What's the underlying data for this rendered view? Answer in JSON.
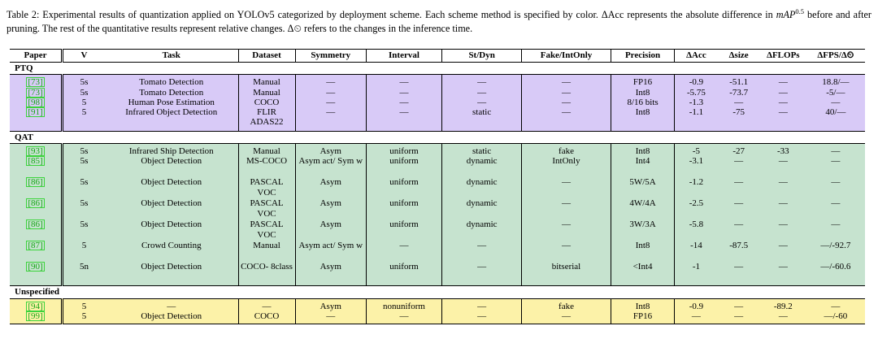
{
  "caption": {
    "label": "Table 2:",
    "text1": " Experimental results of quantization applied on YOLOv5 categorized by deployment scheme. Each scheme method is specified by color. ΔAcc represents the absolute difference in ",
    "map_base": "mAP",
    "map_sup": "0.5",
    "text2": " before and after pruning. The rest of the quantitative results represent relative changes. Δ⏲ refers to the changes in the inference time."
  },
  "headers": [
    "Paper",
    "V",
    "Task",
    "Dataset",
    "Symmetry",
    "Interval",
    "St/Dyn",
    "Fake/IntOnly",
    "Precision",
    "ΔAcc",
    "Δsize",
    "ΔFLOPs",
    "ΔFPS/Δ⏲"
  ],
  "sections": [
    {
      "name": "PTQ",
      "rows": [
        [
          "73",
          "5s",
          "Tomato Detection",
          "Manual",
          "—",
          "—",
          "—",
          "—",
          "FP16",
          "-0.9",
          "-51.1",
          "—",
          "18.8/—"
        ],
        [
          "73",
          "5s",
          "Tomato Detection",
          "Manual",
          "—",
          "—",
          "—",
          "—",
          "Int8",
          "-5.75",
          "-73.7",
          "—",
          "-5/—"
        ],
        [
          "98",
          "5",
          "Human Pose Estimation",
          "COCO",
          "—",
          "—",
          "—",
          "—",
          "8/16 bits",
          "-1.3",
          "—",
          "—",
          "—"
        ],
        [
          "91",
          "5",
          "Infrared Object Detection",
          "FLIR ADAS22",
          "—",
          "—",
          "static",
          "—",
          "Int8",
          "-1.1",
          "-75",
          "—",
          "40/—"
        ]
      ]
    },
    {
      "name": "QAT",
      "rows": [
        [
          "93",
          "5s",
          "Infrared Ship Detection",
          "Manual",
          "Asym",
          "uniform",
          "static",
          "fake",
          "Int8",
          "-5",
          "-27",
          "-33",
          "—"
        ],
        [
          "85",
          "5s",
          "Object Detection",
          "MS-COCO",
          "Asym act/ Sym w",
          "uniform",
          "dynamic",
          "IntOnly",
          "Int4",
          "-3.1",
          "—",
          "—",
          "—"
        ],
        [
          "86",
          "5s",
          "Object Detection",
          "PASCAL VOC",
          "Asym",
          "uniform",
          "dynamic",
          "—",
          "5W/5A",
          "-1.2",
          "—",
          "—",
          "—"
        ],
        [
          "86",
          "5s",
          "Object Detection",
          "PASCAL VOC",
          "Asym",
          "uniform",
          "dynamic",
          "—",
          "4W/4A",
          "-2.5",
          "—",
          "—",
          "—"
        ],
        [
          "86",
          "5s",
          "Object Detection",
          "PASCAL VOC",
          "Asym",
          "uniform",
          "dynamic",
          "—",
          "3W/3A",
          "-5.8",
          "—",
          "—",
          "—"
        ],
        [
          "87",
          "5",
          "Crowd Counting",
          "Manual",
          "Asym act/ Sym w",
          "—",
          "—",
          "—",
          "Int8",
          "-14",
          "-87.5",
          "—",
          "—/-92.7"
        ],
        [
          "90",
          "5n",
          "Object Detection",
          "COCO- 8class",
          "Asym",
          "uniform",
          "—",
          "bitserial",
          "<Int4",
          "-1",
          "—",
          "—",
          "—/-60.6"
        ]
      ]
    },
    {
      "name": "Unspecified",
      "rows": [
        [
          "94",
          "5",
          "—",
          "—",
          "Asym",
          "nonuniform",
          "—",
          "fake",
          "Int8",
          "-0.9",
          "—",
          "-89.2",
          "—"
        ],
        [
          "99",
          "5",
          "Object Detection",
          "COCO",
          "—",
          "—",
          "—",
          "—",
          "FP16",
          "—",
          "—",
          "—",
          "—/-60"
        ]
      ]
    }
  ]
}
